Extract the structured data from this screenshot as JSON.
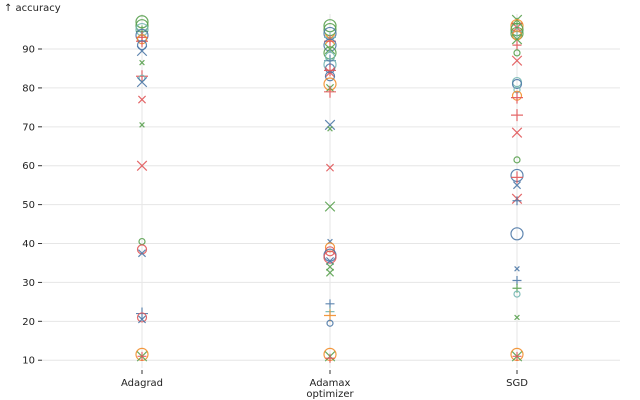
{
  "chart_data": {
    "type": "scatter",
    "xlabel": "optimizer",
    "ylabel": "↑ accuracy",
    "categories": [
      "Adagrad",
      "Adamax",
      "SGD"
    ],
    "ylim": [
      8,
      99
    ],
    "yticks": [
      10,
      20,
      30,
      40,
      50,
      60,
      70,
      80,
      90
    ],
    "grid": true,
    "colors": {
      "blue": "#4e79a7",
      "orange": "#f28e2b",
      "red": "#e15759",
      "green": "#59a14f",
      "teal": "#76b7b2"
    },
    "points": [
      {
        "x": "Adagrad",
        "y": 97,
        "shape": "circle",
        "color": "green",
        "size": "large"
      },
      {
        "x": "Adagrad",
        "y": 96,
        "shape": "circle",
        "color": "green",
        "size": "large"
      },
      {
        "x": "Adagrad",
        "y": 95,
        "shape": "circle",
        "color": "teal",
        "size": "large"
      },
      {
        "x": "Adagrad",
        "y": 94.5,
        "shape": "plus",
        "color": "green",
        "size": "large"
      },
      {
        "x": "Adagrad",
        "y": 94,
        "shape": "cross",
        "color": "teal",
        "size": "large"
      },
      {
        "x": "Adagrad",
        "y": 93.5,
        "shape": "circle",
        "color": "blue",
        "size": "large"
      },
      {
        "x": "Adagrad",
        "y": 93,
        "shape": "plus",
        "color": "red",
        "size": "large"
      },
      {
        "x": "Adagrad",
        "y": 92.5,
        "shape": "circle",
        "color": "orange",
        "size": "medium"
      },
      {
        "x": "Adagrad",
        "y": 92,
        "shape": "plus",
        "color": "red",
        "size": "large"
      },
      {
        "x": "Adagrad",
        "y": 91,
        "shape": "circle",
        "color": "blue",
        "size": "medium"
      },
      {
        "x": "Adagrad",
        "y": 89.5,
        "shape": "cross",
        "color": "blue",
        "size": "large"
      },
      {
        "x": "Adagrad",
        "y": 86.5,
        "shape": "cross",
        "color": "green",
        "size": "small"
      },
      {
        "x": "Adagrad",
        "y": 83,
        "shape": "plus",
        "color": "red",
        "size": "large"
      },
      {
        "x": "Adagrad",
        "y": 82.5,
        "shape": "circle",
        "color": "teal",
        "size": "small"
      },
      {
        "x": "Adagrad",
        "y": 81.5,
        "shape": "cross",
        "color": "blue",
        "size": "large"
      },
      {
        "x": "Adagrad",
        "y": 77,
        "shape": "cross",
        "color": "red",
        "size": "medium"
      },
      {
        "x": "Adagrad",
        "y": 70.5,
        "shape": "cross",
        "color": "green",
        "size": "small"
      },
      {
        "x": "Adagrad",
        "y": 60,
        "shape": "cross",
        "color": "red",
        "size": "large"
      },
      {
        "x": "Adagrad",
        "y": 40.5,
        "shape": "circle",
        "color": "green",
        "size": "small"
      },
      {
        "x": "Adagrad",
        "y": 38.5,
        "shape": "circle",
        "color": "red",
        "size": "medium"
      },
      {
        "x": "Adagrad",
        "y": 37.5,
        "shape": "cross",
        "color": "blue",
        "size": "medium"
      },
      {
        "x": "Adagrad",
        "y": 22,
        "shape": "plus",
        "color": "blue",
        "size": "large"
      },
      {
        "x": "Adagrad",
        "y": 21,
        "shape": "circle",
        "color": "red",
        "size": "medium"
      },
      {
        "x": "Adagrad",
        "y": 20.5,
        "shape": "cross",
        "color": "blue",
        "size": "medium"
      },
      {
        "x": "Adagrad",
        "y": 11.5,
        "shape": "circle",
        "color": "orange",
        "size": "large"
      },
      {
        "x": "Adagrad",
        "y": 11,
        "shape": "cross",
        "color": "green",
        "size": "large"
      },
      {
        "x": "Adagrad",
        "y": 11,
        "shape": "plus",
        "color": "red",
        "size": "medium"
      },
      {
        "x": "Adamax",
        "y": 96,
        "shape": "circle",
        "color": "green",
        "size": "large"
      },
      {
        "x": "Adamax",
        "y": 95,
        "shape": "circle",
        "color": "green",
        "size": "large"
      },
      {
        "x": "Adamax",
        "y": 94,
        "shape": "circle",
        "color": "blue",
        "size": "large"
      },
      {
        "x": "Adamax",
        "y": 93,
        "shape": "plus",
        "color": "teal",
        "size": "large"
      },
      {
        "x": "Adamax",
        "y": 92.5,
        "shape": "cross",
        "color": "orange",
        "size": "large"
      },
      {
        "x": "Adamax",
        "y": 92,
        "shape": "plus",
        "color": "red",
        "size": "large"
      },
      {
        "x": "Adamax",
        "y": 91,
        "shape": "circle",
        "color": "blue",
        "size": "large"
      },
      {
        "x": "Adamax",
        "y": 90,
        "shape": "cross",
        "color": "green",
        "size": "large"
      },
      {
        "x": "Adamax",
        "y": 89,
        "shape": "circle",
        "color": "green",
        "size": "large"
      },
      {
        "x": "Adamax",
        "y": 88,
        "shape": "circle",
        "color": "teal",
        "size": "medium"
      },
      {
        "x": "Adamax",
        "y": 87,
        "shape": "plus",
        "color": "blue",
        "size": "large"
      },
      {
        "x": "Adamax",
        "y": 86,
        "shape": "circle",
        "color": "teal",
        "size": "large"
      },
      {
        "x": "Adamax",
        "y": 85,
        "shape": "circle",
        "color": "blue",
        "size": "medium"
      },
      {
        "x": "Adamax",
        "y": 84.5,
        "shape": "plus",
        "color": "red",
        "size": "large"
      },
      {
        "x": "Adamax",
        "y": 84,
        "shape": "cross",
        "color": "red",
        "size": "large"
      },
      {
        "x": "Adamax",
        "y": 83,
        "shape": "circle",
        "color": "blue",
        "size": "medium"
      },
      {
        "x": "Adamax",
        "y": 81,
        "shape": "circle",
        "color": "orange",
        "size": "large"
      },
      {
        "x": "Adamax",
        "y": 80,
        "shape": "cross",
        "color": "green",
        "size": "medium"
      },
      {
        "x": "Adamax",
        "y": 79,
        "shape": "plus",
        "color": "red",
        "size": "large"
      },
      {
        "x": "Adamax",
        "y": 70.5,
        "shape": "cross",
        "color": "blue",
        "size": "large"
      },
      {
        "x": "Adamax",
        "y": 69.5,
        "shape": "cross",
        "color": "green",
        "size": "small"
      },
      {
        "x": "Adamax",
        "y": 59.5,
        "shape": "cross",
        "color": "red",
        "size": "medium"
      },
      {
        "x": "Adamax",
        "y": 49.5,
        "shape": "cross",
        "color": "green",
        "size": "large"
      },
      {
        "x": "Adamax",
        "y": 40.5,
        "shape": "cross",
        "color": "blue",
        "size": "small"
      },
      {
        "x": "Adamax",
        "y": 39,
        "shape": "circle",
        "color": "orange",
        "size": "medium"
      },
      {
        "x": "Adamax",
        "y": 38,
        "shape": "circle",
        "color": "red",
        "size": "medium"
      },
      {
        "x": "Adamax",
        "y": 37,
        "shape": "circle",
        "color": "blue",
        "size": "large"
      },
      {
        "x": "Adamax",
        "y": 36.5,
        "shape": "circle",
        "color": "red",
        "size": "large"
      },
      {
        "x": "Adamax",
        "y": 35.5,
        "shape": "cross",
        "color": "blue",
        "size": "medium"
      },
      {
        "x": "Adamax",
        "y": 34,
        "shape": "cross",
        "color": "green",
        "size": "medium"
      },
      {
        "x": "Adamax",
        "y": 32.5,
        "shape": "cross",
        "color": "green",
        "size": "medium"
      },
      {
        "x": "Adamax",
        "y": 24.5,
        "shape": "plus",
        "color": "blue",
        "size": "medium"
      },
      {
        "x": "Adamax",
        "y": 22.5,
        "shape": "plus",
        "color": "teal",
        "size": "medium"
      },
      {
        "x": "Adamax",
        "y": 21.5,
        "shape": "plus",
        "color": "orange",
        "size": "large"
      },
      {
        "x": "Adamax",
        "y": 19.5,
        "shape": "circle",
        "color": "blue",
        "size": "small"
      },
      {
        "x": "Adamax",
        "y": 11.5,
        "shape": "circle",
        "color": "orange",
        "size": "large"
      },
      {
        "x": "Adamax",
        "y": 11,
        "shape": "cross",
        "color": "green",
        "size": "large"
      },
      {
        "x": "Adamax",
        "y": 10.5,
        "shape": "plus",
        "color": "red",
        "size": "medium"
      },
      {
        "x": "SGD",
        "y": 97.5,
        "shape": "cross",
        "color": "green",
        "size": "large"
      },
      {
        "x": "SGD",
        "y": 96.5,
        "shape": "plus",
        "color": "green",
        "size": "large"
      },
      {
        "x": "SGD",
        "y": 96,
        "shape": "circle",
        "color": "orange",
        "size": "large"
      },
      {
        "x": "SGD",
        "y": 95.5,
        "shape": "cross",
        "color": "red",
        "size": "large"
      },
      {
        "x": "SGD",
        "y": 95,
        "shape": "circle",
        "color": "green",
        "size": "large"
      },
      {
        "x": "SGD",
        "y": 94.5,
        "shape": "plus",
        "color": "teal",
        "size": "large"
      },
      {
        "x": "SGD",
        "y": 94,
        "shape": "circle",
        "color": "green",
        "size": "large"
      },
      {
        "x": "SGD",
        "y": 93.5,
        "shape": "circle",
        "color": "orange",
        "size": "medium"
      },
      {
        "x": "SGD",
        "y": 92.5,
        "shape": "cross",
        "color": "green",
        "size": "large"
      },
      {
        "x": "SGD",
        "y": 91,
        "shape": "plus",
        "color": "red",
        "size": "medium"
      },
      {
        "x": "SGD",
        "y": 89,
        "shape": "circle",
        "color": "green",
        "size": "small"
      },
      {
        "x": "SGD",
        "y": 87,
        "shape": "cross",
        "color": "red",
        "size": "large"
      },
      {
        "x": "SGD",
        "y": 81.5,
        "shape": "circle",
        "color": "teal",
        "size": "medium"
      },
      {
        "x": "SGD",
        "y": 81,
        "shape": "circle",
        "color": "blue",
        "size": "medium"
      },
      {
        "x": "SGD",
        "y": 79.5,
        "shape": "circle",
        "color": "teal",
        "size": "small"
      },
      {
        "x": "SGD",
        "y": 78,
        "shape": "circle",
        "color": "orange",
        "size": "medium"
      },
      {
        "x": "SGD",
        "y": 77.5,
        "shape": "plus",
        "color": "red",
        "size": "large"
      },
      {
        "x": "SGD",
        "y": 73,
        "shape": "plus",
        "color": "red",
        "size": "large"
      },
      {
        "x": "SGD",
        "y": 68.5,
        "shape": "cross",
        "color": "red",
        "size": "large"
      },
      {
        "x": "SGD",
        "y": 61.5,
        "shape": "circle",
        "color": "green",
        "size": "small"
      },
      {
        "x": "SGD",
        "y": 57.5,
        "shape": "circle",
        "color": "blue",
        "size": "large"
      },
      {
        "x": "SGD",
        "y": 57,
        "shape": "plus",
        "color": "red",
        "size": "large"
      },
      {
        "x": "SGD",
        "y": 55,
        "shape": "cross",
        "color": "blue",
        "size": "medium"
      },
      {
        "x": "SGD",
        "y": 51.5,
        "shape": "cross",
        "color": "red",
        "size": "large"
      },
      {
        "x": "SGD",
        "y": 51,
        "shape": "plus",
        "color": "blue",
        "size": "medium"
      },
      {
        "x": "SGD",
        "y": 42.5,
        "shape": "circle",
        "color": "blue",
        "size": "large"
      },
      {
        "x": "SGD",
        "y": 33.5,
        "shape": "cross",
        "color": "blue",
        "size": "small"
      },
      {
        "x": "SGD",
        "y": 30.5,
        "shape": "plus",
        "color": "blue",
        "size": "medium"
      },
      {
        "x": "SGD",
        "y": 28.5,
        "shape": "plus",
        "color": "green",
        "size": "medium"
      },
      {
        "x": "SGD",
        "y": 27,
        "shape": "circle",
        "color": "teal",
        "size": "small"
      },
      {
        "x": "SGD",
        "y": 21,
        "shape": "cross",
        "color": "green",
        "size": "small"
      },
      {
        "x": "SGD",
        "y": 11.5,
        "shape": "circle",
        "color": "orange",
        "size": "large"
      },
      {
        "x": "SGD",
        "y": 11,
        "shape": "cross",
        "color": "green",
        "size": "large"
      },
      {
        "x": "SGD",
        "y": 11,
        "shape": "plus",
        "color": "red",
        "size": "medium"
      }
    ]
  }
}
